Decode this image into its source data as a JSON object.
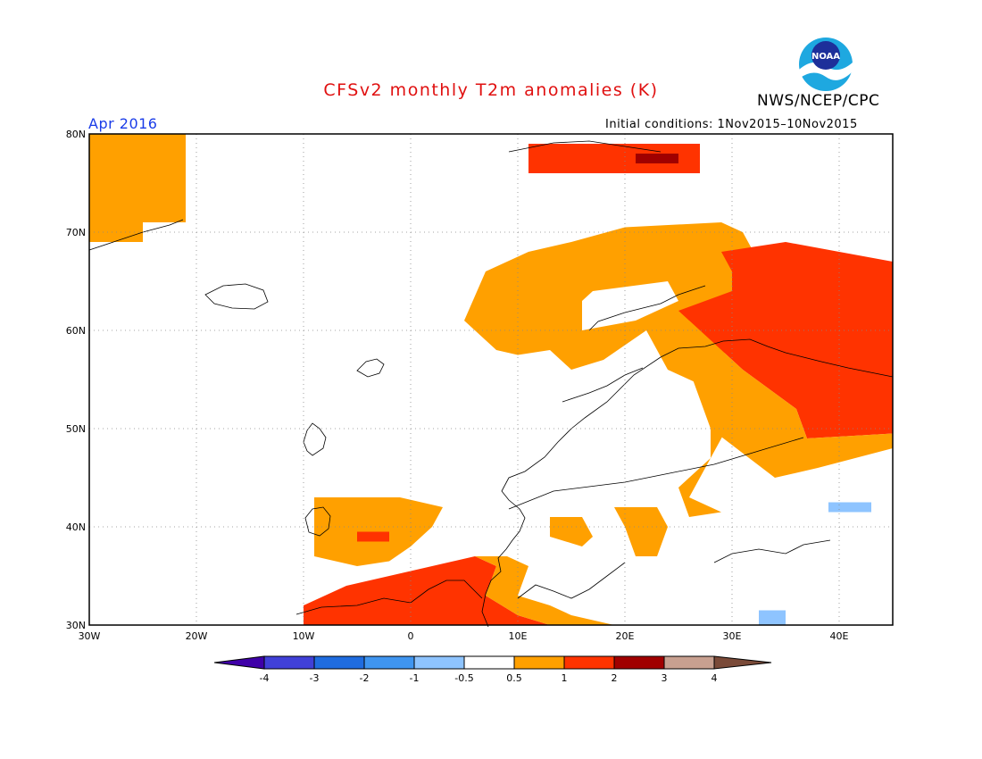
{
  "header": {
    "title": "CFSv2 monthly T2m anomalies (K)",
    "org": "NWS/NCEP/CPC",
    "logo_text": "NOAA",
    "period": "Apr 2016",
    "initial_conditions": "Initial conditions: 1Nov2015–10Nov2015"
  },
  "map": {
    "lon_range": [
      -30,
      45
    ],
    "lat_range": [
      30,
      80
    ],
    "lon_ticks": [
      {
        "value": -30,
        "label": "30W"
      },
      {
        "value": -20,
        "label": "20W"
      },
      {
        "value": -10,
        "label": "10W"
      },
      {
        "value": 0,
        "label": "0"
      },
      {
        "value": 10,
        "label": "10E"
      },
      {
        "value": 20,
        "label": "20E"
      },
      {
        "value": 30,
        "label": "30E"
      },
      {
        "value": 40,
        "label": "40E"
      }
    ],
    "lat_ticks": [
      {
        "value": 30,
        "label": "30N"
      },
      {
        "value": 40,
        "label": "40N"
      },
      {
        "value": 50,
        "label": "50N"
      },
      {
        "value": 60,
        "label": "60N"
      },
      {
        "value": 70,
        "label": "70N"
      },
      {
        "value": 80,
        "label": "80N"
      }
    ],
    "gridlines": "dotted",
    "anomaly_regions": [
      {
        "name": "greenland",
        "class": "0.5-1",
        "color": "#ffa000",
        "poly": [
          [
            -30,
            80
          ],
          [
            -21,
            80
          ],
          [
            -21,
            71
          ],
          [
            -25,
            71
          ],
          [
            -25,
            69
          ],
          [
            -30,
            69
          ]
        ]
      },
      {
        "name": "svalbard",
        "class": "1-2",
        "color": "#ff3300",
        "poly": [
          [
            11,
            79
          ],
          [
            27,
            79
          ],
          [
            27,
            76
          ],
          [
            11,
            76
          ]
        ]
      },
      {
        "name": "svalbard-east",
        "class": "2-3",
        "color": "#a00000",
        "poly": [
          [
            21,
            78
          ],
          [
            25,
            78
          ],
          [
            25,
            77
          ],
          [
            21,
            77
          ]
        ]
      },
      {
        "name": "scandinavia",
        "class": "0.5-1",
        "color": "#ffa000",
        "poly": [
          [
            5,
            61
          ],
          [
            7,
            66
          ],
          [
            11,
            68
          ],
          [
            15,
            69
          ],
          [
            20,
            70.5
          ],
          [
            29,
            71
          ],
          [
            31,
            70
          ],
          [
            33,
            66
          ],
          [
            31,
            62
          ],
          [
            29,
            57
          ],
          [
            28,
            54
          ],
          [
            30,
            51
          ],
          [
            28,
            47
          ],
          [
            26,
            43
          ],
          [
            29,
            41.5
          ],
          [
            26,
            41
          ],
          [
            25,
            44
          ],
          [
            28,
            47
          ],
          [
            28,
            54
          ],
          [
            24,
            56
          ],
          [
            22,
            60
          ],
          [
            18,
            57
          ],
          [
            15,
            56
          ],
          [
            13,
            58
          ],
          [
            10,
            57.5
          ],
          [
            8,
            58
          ]
        ]
      },
      {
        "name": "finland-core",
        "class": "-0.5-0.5",
        "color": "#ffffff",
        "poly": [
          [
            17,
            64
          ],
          [
            24,
            65
          ],
          [
            25,
            63
          ],
          [
            21,
            61
          ],
          [
            16,
            60
          ],
          [
            16,
            63
          ]
        ]
      },
      {
        "name": "russia-warm",
        "class": "1-2",
        "color": "#ff3300",
        "poly": [
          [
            29,
            68
          ],
          [
            35,
            69
          ],
          [
            40,
            68
          ],
          [
            45,
            67
          ],
          [
            45,
            49.5
          ],
          [
            37,
            49
          ],
          [
            36,
            52
          ],
          [
            31,
            56
          ],
          [
            29,
            58
          ],
          [
            26,
            61
          ],
          [
            25,
            62
          ],
          [
            30,
            64
          ],
          [
            30,
            66
          ]
        ]
      },
      {
        "name": "russia-south-1",
        "class": "0.5-1",
        "color": "#ffa000",
        "poly": [
          [
            26,
            61
          ],
          [
            31,
            56
          ],
          [
            36,
            52
          ],
          [
            37,
            49
          ],
          [
            45,
            49.5
          ],
          [
            45,
            48
          ],
          [
            38,
            46
          ],
          [
            34,
            45
          ],
          [
            28,
            50
          ],
          [
            26,
            56
          ],
          [
            24,
            58
          ]
        ]
      },
      {
        "name": "iberia",
        "class": "0.5-1",
        "color": "#ffa000",
        "poly": [
          [
            -9,
            43
          ],
          [
            -1,
            43
          ],
          [
            3,
            42
          ],
          [
            2,
            40
          ],
          [
            0,
            38
          ],
          [
            -2,
            36.5
          ],
          [
            -5,
            36
          ],
          [
            -9,
            37
          ]
        ]
      },
      {
        "name": "spain-warm",
        "class": "1-2",
        "color": "#ff3300",
        "poly": [
          [
            -5,
            39.5
          ],
          [
            -2,
            39.5
          ],
          [
            -2,
            38.5
          ],
          [
            -5,
            38.5
          ]
        ]
      },
      {
        "name": "north-africa",
        "class": "1-2",
        "color": "#ff3300",
        "poly": [
          [
            -10,
            30
          ],
          [
            -10,
            32
          ],
          [
            -6,
            34
          ],
          [
            -2,
            35
          ],
          [
            2,
            36
          ],
          [
            6,
            37
          ],
          [
            8,
            36
          ],
          [
            7,
            33
          ],
          [
            10,
            31
          ],
          [
            13,
            30
          ]
        ]
      },
      {
        "name": "north-africa-edge",
        "class": "0.5-1",
        "color": "#ffa000",
        "poly": [
          [
            6,
            37
          ],
          [
            9,
            37
          ],
          [
            11,
            36
          ],
          [
            10,
            33
          ],
          [
            13,
            32
          ],
          [
            15,
            31
          ],
          [
            19,
            30
          ],
          [
            13,
            30
          ],
          [
            10,
            31
          ],
          [
            7,
            33
          ],
          [
            8,
            36
          ]
        ]
      },
      {
        "name": "balkans",
        "class": "0.5-1",
        "color": "#ffa000",
        "poly": [
          [
            19,
            42
          ],
          [
            23,
            42
          ],
          [
            24,
            40
          ],
          [
            23,
            37
          ],
          [
            21,
            37
          ],
          [
            20,
            40
          ]
        ]
      },
      {
        "name": "italy-south",
        "class": "0.5-1",
        "color": "#ffa000",
        "poly": [
          [
            13,
            41
          ],
          [
            16,
            41
          ],
          [
            17,
            39
          ],
          [
            16,
            38
          ],
          [
            13,
            39
          ]
        ]
      },
      {
        "name": "caucasus-cool",
        "class": "-1--0.5",
        "color": "#8ec4ff",
        "poly": [
          [
            39,
            42.5
          ],
          [
            43,
            42.5
          ],
          [
            43,
            41.5
          ],
          [
            39,
            41.5
          ]
        ]
      },
      {
        "name": "levant-cool",
        "class": "-1--0.5",
        "color": "#8ec4ff",
        "poly": [
          [
            32.5,
            31.5
          ],
          [
            35,
            31.5
          ],
          [
            35,
            30
          ],
          [
            32.5,
            30
          ]
        ]
      }
    ]
  },
  "colorbar": {
    "levels": [
      "-4",
      "-3",
      "-2",
      "-1",
      "-0.5",
      "0.5",
      "1",
      "2",
      "3",
      "4"
    ],
    "colors": [
      "#3f00a8",
      "#4040d8",
      "#1f6ce0",
      "#3f95f0",
      "#8ec4ff",
      "#ffffff",
      "#ffa000",
      "#ff3300",
      "#a00000",
      "#c8a090",
      "#7a4a38"
    ]
  }
}
